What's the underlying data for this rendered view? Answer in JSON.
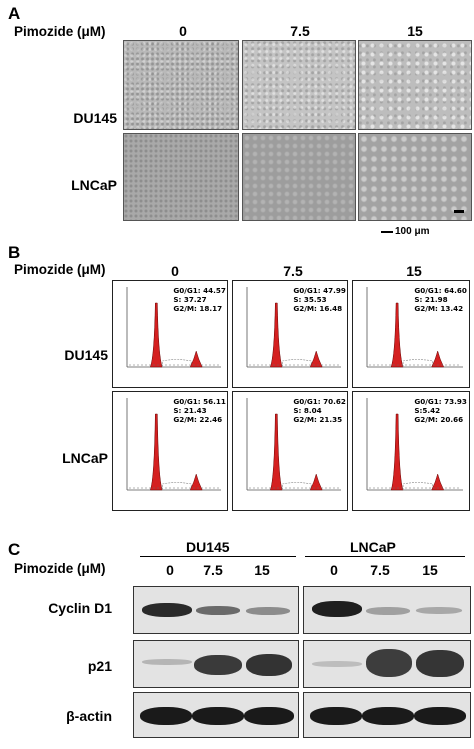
{
  "panelA": {
    "letter": "A",
    "header": "Pimozide (μM)",
    "concentrations": [
      "0",
      "7.5",
      "15"
    ],
    "rows": [
      "DU145",
      "LNCaP"
    ],
    "scalebar": "100 μm"
  },
  "panelB": {
    "letter": "B",
    "header": "Pimozide (μM)",
    "concentrations": [
      "0",
      "7.5",
      "15"
    ],
    "rows": [
      {
        "label": "DU145",
        "cells": [
          {
            "g0g1": "G0/G1: 44.57",
            "s": "S: 37.27",
            "g2m": "G2/M:  18.17"
          },
          {
            "g0g1": "G0/G1: 47.99",
            "s": "S: 35.53",
            "g2m": "G2/M:  16.48"
          },
          {
            "g0g1": "G0/G1: 64.60",
            "s": "S: 21.98",
            "g2m": "G2/M:  13.42"
          }
        ]
      },
      {
        "label": "LNCaP",
        "cells": [
          {
            "g0g1": "G0/G1: 56.11",
            "s": "S: 21.43",
            "g2m": "G2/M:  22.46"
          },
          {
            "g0g1": "G0/G1: 70.62",
            "s": "S: 8.04",
            "g2m": "G2/M:  21.35"
          },
          {
            "g0g1": "G0/G1: 73.93",
            "s": "S:5.42",
            "g2m": "G2/M:  20.66"
          }
        ]
      }
    ]
  },
  "panelC": {
    "letter": "C",
    "header": "Pimozide (μM)",
    "cell_lines": [
      "DU145",
      "LNCaP"
    ],
    "concentrations": [
      "0",
      "7.5",
      "15",
      "0",
      "7.5",
      "15"
    ],
    "proteins": [
      "Cyclin D1",
      "p21",
      "β-actin"
    ]
  },
  "colors": {
    "histogram_fill": "#d42020",
    "band": "#1a1a1a"
  }
}
